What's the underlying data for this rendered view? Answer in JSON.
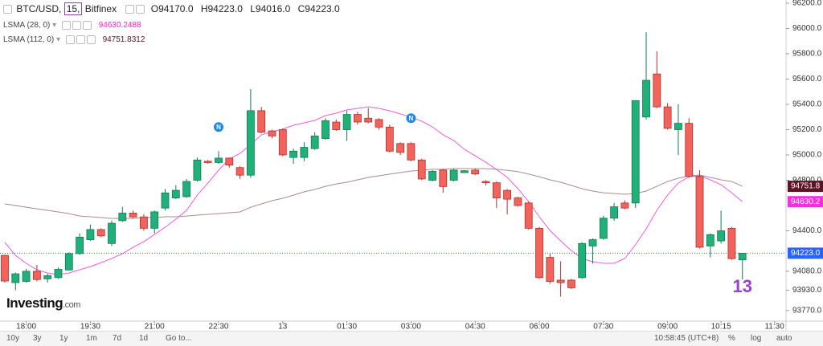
{
  "chart_data": {
    "type": "candlestick",
    "symbol": "BTC/USD,",
    "interval": "15,",
    "exchange": "Bitfinex",
    "ohlc_header": [
      "O94170.0",
      "H94223.0",
      "L94016.0",
      "C94223.0"
    ],
    "up_color": "#22b07a",
    "down_color": "#f2635b",
    "open": [
      94206,
      93990,
      94000,
      94080,
      94020,
      94030,
      94090,
      94220,
      94330,
      94410,
      94300,
      94480,
      94540,
      94510,
      94420,
      94580,
      94660,
      94670,
      94800,
      94950,
      94940,
      94975,
      94900,
      94840,
      95350,
      95190,
      95200,
      94980,
      94980,
      95050,
      95130,
      95260,
      95200,
      95320,
      95290,
      95280,
      95220,
      95090,
      95090,
      94960,
      94800,
      94880,
      94800,
      94860,
      94880,
      94790,
      94780,
      94720,
      94660,
      94620,
      94420,
      94190,
      94010,
      94010,
      94030,
      94280,
      94340,
      94500,
      94620,
      94620,
      95300,
      95640,
      95380,
      95200,
      95250,
      94830,
      94280,
      94320,
      94420,
      94170
    ],
    "high": [
      94210,
      94070,
      94100,
      94130,
      94060,
      94110,
      94230,
      94380,
      94450,
      94420,
      94480,
      94590,
      94560,
      94530,
      94560,
      94730,
      94760,
      94810,
      94980,
      94960,
      95030,
      94980,
      94910,
      95520,
      95380,
      95200,
      95210,
      95050,
      95100,
      95180,
      95290,
      95280,
      95350,
      95340,
      95370,
      95290,
      95240,
      95100,
      95100,
      94970,
      94880,
      94890,
      94890,
      94880,
      94890,
      94800,
      94790,
      94730,
      94670,
      94630,
      94430,
      94220,
      94160,
      94020,
      94310,
      94340,
      94520,
      94620,
      94640,
      95430,
      95970,
      95820,
      95410,
      95400,
      95290,
      94880,
      94380,
      94560,
      94430,
      94223
    ],
    "low": [
      93990,
      93930,
      93990,
      94000,
      93990,
      94020,
      94085,
      94210,
      94320,
      94350,
      94280,
      94470,
      94500,
      94400,
      94380,
      94560,
      94650,
      94660,
      94790,
      94930,
      94930,
      94900,
      94810,
      94820,
      95170,
      95130,
      94990,
      94930,
      94950,
      95040,
      95120,
      95190,
      95110,
      95240,
      95250,
      95200,
      95020,
      95000,
      94950,
      94800,
      94790,
      94700,
      94790,
      94860,
      94840,
      94760,
      94580,
      94530,
      94590,
      94410,
      94020,
      93980,
      93880,
      93940,
      94020,
      94140,
      94330,
      94480,
      94570,
      94580,
      95280,
      95370,
      95200,
      95000,
      94820,
      94260,
      94190,
      94300,
      94170,
      94016
    ],
    "close": [
      94003,
      94060,
      94080,
      94015,
      94045,
      94095,
      94220,
      94350,
      94410,
      94360,
      94460,
      94540,
      94510,
      94420,
      94550,
      94700,
      94720,
      94790,
      94960,
      94940,
      94975,
      94920,
      94840,
      95350,
      95180,
      95150,
      95000,
      95030,
      95060,
      95150,
      95270,
      95200,
      95320,
      95260,
      95260,
      95220,
      95030,
      95020,
      94960,
      94810,
      94870,
      94750,
      94880,
      94875,
      94850,
      94780,
      94660,
      94650,
      94600,
      94420,
      94030,
      94000,
      93990,
      93950,
      94300,
      94330,
      94500,
      94590,
      94580,
      95430,
      95590,
      95380,
      95210,
      95250,
      94830,
      94270,
      94370,
      94400,
      94180,
      94223
    ],
    "series": [
      {
        "name": "LSMA (28, 0)",
        "color": "#f05ce0",
        "value_color": "#ff1fd2",
        "last_label": "94630.2488",
        "badge": "94630.2",
        "badge_color": "#f52fe0",
        "values": [
          94308,
          94206,
          94143,
          94092,
          94066,
          94054,
          94066,
          94092,
          94117,
          94149,
          94181,
          94219,
          94270,
          94314,
          94371,
          94428,
          94492,
          94562,
          94682,
          94777,
          94879,
          94968,
          95012,
          95082,
          95159,
          95184,
          95203,
          95235,
          95254,
          95273,
          95311,
          95330,
          95356,
          95368,
          95381,
          95368,
          95349,
          95324,
          95298,
          95267,
          95222,
          95159,
          95114,
          95044,
          94993,
          94942,
          94885,
          94822,
          94733,
          94632,
          94511,
          94403,
          94320,
          94244,
          94181,
          94155,
          94143,
          94143,
          94181,
          94289,
          94416,
          94562,
          94682,
          94777,
          94828,
          94835,
          94803,
          94765,
          94701,
          94630.2488
        ]
      },
      {
        "name": "LSMA (112, 0)",
        "color": "#a88c8c",
        "value_color": "#5a1426",
        "last_label": "94751.8312",
        "badge": "94751.8",
        "badge_color": "#5a1426",
        "values": [
          94613,
          94600,
          94587,
          94574,
          94562,
          94549,
          94536,
          94517,
          94511,
          94505,
          94498,
          94498,
          94498,
          94505,
          94505,
          94511,
          94511,
          94517,
          94524,
          94530,
          94536,
          94543,
          94549,
          94587,
          94613,
          94638,
          94657,
          94682,
          94708,
          94727,
          94752,
          94771,
          94784,
          94803,
          94822,
          94835,
          94848,
          94860,
          94873,
          94879,
          94886,
          94886,
          94892,
          94892,
          94892,
          94892,
          94886,
          94879,
          94867,
          94848,
          94828,
          94803,
          94784,
          94759,
          94733,
          94714,
          94701,
          94695,
          94689,
          94695,
          94714,
          94752,
          94790,
          94816,
          94835,
          94841,
          94822,
          94803,
          94790,
          94751.8312
        ]
      }
    ],
    "price_line": {
      "value": 94223,
      "label": "94223.0",
      "color": "#2962ff"
    },
    "events": [
      {
        "at": 20,
        "label": "N"
      },
      {
        "at": 38,
        "label": "N"
      }
    ],
    "event_color": "#1e88e5",
    "annotation": "13",
    "annotation_color": "#9b3fd0",
    "xlim": [
      -0.45,
      73.08
    ],
    "xticks": [
      {
        "value": 2,
        "label": "18:00"
      },
      {
        "value": 8,
        "label": "19:30"
      },
      {
        "value": 14,
        "label": "21:00"
      },
      {
        "value": 20,
        "label": "22:30"
      },
      {
        "value": 26,
        "label": "13"
      },
      {
        "value": 32,
        "label": "01:30"
      },
      {
        "value": 38,
        "label": "03:00"
      },
      {
        "value": 44,
        "label": "04:30"
      },
      {
        "value": 50,
        "label": "06:00"
      },
      {
        "value": 56,
        "label": "07:30"
      },
      {
        "value": 62,
        "label": "09:00"
      },
      {
        "value": 67,
        "label": "10:15"
      },
      {
        "value": 72,
        "label": "11:30"
      }
    ],
    "ylim": [
      93686,
      96225
    ],
    "yticks": [
      {
        "value": 96200,
        "label": "96200.0"
      },
      {
        "value": 96000,
        "label": "96000.0"
      },
      {
        "value": 95800,
        "label": "95800.0"
      },
      {
        "value": 95600,
        "label": "95600.0"
      },
      {
        "value": 95400,
        "label": "95400.0"
      },
      {
        "value": 95200,
        "label": "95200.0"
      },
      {
        "value": 95000,
        "label": "95000.0"
      },
      {
        "value": 94800,
        "label": "94800.0"
      },
      {
        "value": 94400,
        "label": "94400.0"
      },
      {
        "value": 94080,
        "label": "94080.0"
      },
      {
        "value": 93930,
        "label": "93930.0"
      },
      {
        "value": 93770,
        "label": "93770.0"
      }
    ],
    "grid": false,
    "watermark": "Investing",
    "watermark_suffix": ".com",
    "toolbar": {
      "ranges": [
        "10y",
        "3y",
        "1y",
        "1m",
        "7d",
        "1d"
      ],
      "goto": "Go to...",
      "clock": "10:58:45 (UTC+8)",
      "options": [
        "%",
        "log",
        "auto"
      ]
    }
  }
}
